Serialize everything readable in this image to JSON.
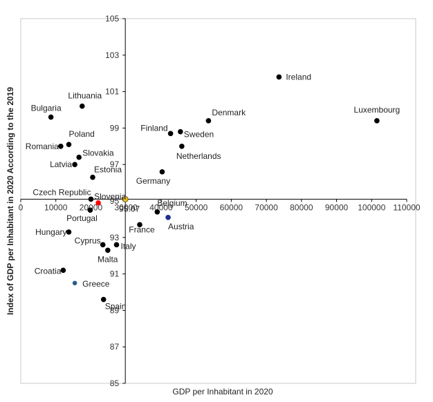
{
  "colors": {
    "default_point": "#000000",
    "slovenia": "#ff0000",
    "eu_average": "#f2c200",
    "highlight_blue": "#1f2f8f",
    "greece": "#2a5d8a"
  },
  "chart_data": {
    "type": "scatter",
    "title": "",
    "xlabel": "GDP per Inhabitant in 2020",
    "ylabel": "Index of GDP per Inhabitant in 2020 According to the 2019",
    "xlim": [
      0,
      110000
    ],
    "ylim": [
      85,
      105
    ],
    "x_ticks": [
      0,
      10000,
      20000,
      30000,
      40000,
      50000,
      60000,
      70000,
      80000,
      90000,
      100000,
      110000
    ],
    "x_tick_labels": [
      "0",
      "10000",
      "20000",
      "30000",
      "40000",
      "50000",
      "60000",
      "70000",
      "80000",
      "90000",
      "100000",
      "110000"
    ],
    "y_ticks": [
      85,
      87,
      89,
      91,
      93,
      95,
      97,
      99,
      101,
      103,
      105
    ],
    "y_tick_labels": [
      "85",
      "87",
      "89",
      "91",
      "93",
      "95",
      "97",
      "99",
      "101",
      "103",
      "105"
    ],
    "x_axis_crosses_y": 95.1,
    "y_axis_crosses_x": 29800,
    "grid": false,
    "legend": "none",
    "points": [
      {
        "name": "Ireland",
        "x": 73600,
        "y": 101.8,
        "color": "default_point"
      },
      {
        "name": "Luxembourg",
        "x": 101500,
        "y": 99.4,
        "color": "default_point"
      },
      {
        "name": "Denmark",
        "x": 53500,
        "y": 99.4,
        "color": "default_point"
      },
      {
        "name": "Finland",
        "x": 42700,
        "y": 98.7,
        "color": "default_point"
      },
      {
        "name": "Sweden",
        "x": 45500,
        "y": 98.8,
        "color": "default_point"
      },
      {
        "name": "Netherlands",
        "x": 45900,
        "y": 98.0,
        "color": "default_point"
      },
      {
        "name": "Germany",
        "x": 40300,
        "y": 96.6,
        "color": "default_point"
      },
      {
        "name": "Lithuania",
        "x": 17500,
        "y": 100.2,
        "color": "default_point"
      },
      {
        "name": "Bulgaria",
        "x": 8600,
        "y": 99.6,
        "color": "default_point"
      },
      {
        "name": "Poland",
        "x": 13700,
        "y": 98.1,
        "color": "default_point"
      },
      {
        "name": "Romania",
        "x": 11400,
        "y": 98.0,
        "color": "default_point"
      },
      {
        "name": "Slovakia",
        "x": 16600,
        "y": 97.4,
        "color": "default_point"
      },
      {
        "name": "Latvia",
        "x": 15400,
        "y": 97.0,
        "color": "default_point"
      },
      {
        "name": "Estonia",
        "x": 20500,
        "y": 96.3,
        "color": "default_point"
      },
      {
        "name": "Czech Republic",
        "x": 20000,
        "y": 95.1,
        "color": "default_point"
      },
      {
        "name": "Slovenia",
        "x": 22100,
        "y": 94.9,
        "color": "slovenia"
      },
      {
        "name": "",
        "x": 29800,
        "y": 95.1,
        "color": "eu_average",
        "value_label": "95.07"
      },
      {
        "name": "Portugal",
        "x": 19800,
        "y": 94.5,
        "color": "default_point"
      },
      {
        "name": "Belgium",
        "x": 38900,
        "y": 94.4,
        "color": "default_point"
      },
      {
        "name": "Austria",
        "x": 42000,
        "y": 94.1,
        "color": "highlight_blue"
      },
      {
        "name": "France",
        "x": 33900,
        "y": 93.7,
        "color": "default_point"
      },
      {
        "name": "Hungary",
        "x": 13700,
        "y": 93.3,
        "color": "default_point"
      },
      {
        "name": "Cyprus",
        "x": 23400,
        "y": 92.6,
        "color": "default_point"
      },
      {
        "name": "Italy",
        "x": 27300,
        "y": 92.6,
        "color": "default_point"
      },
      {
        "name": "Malta",
        "x": 24800,
        "y": 92.3,
        "color": "default_point"
      },
      {
        "name": "Croatia",
        "x": 12100,
        "y": 91.2,
        "color": "default_point"
      },
      {
        "name": "Greece",
        "x": 15400,
        "y": 90.5,
        "color": "greece"
      },
      {
        "name": "Spain",
        "x": 23600,
        "y": 89.6,
        "color": "default_point"
      }
    ]
  }
}
